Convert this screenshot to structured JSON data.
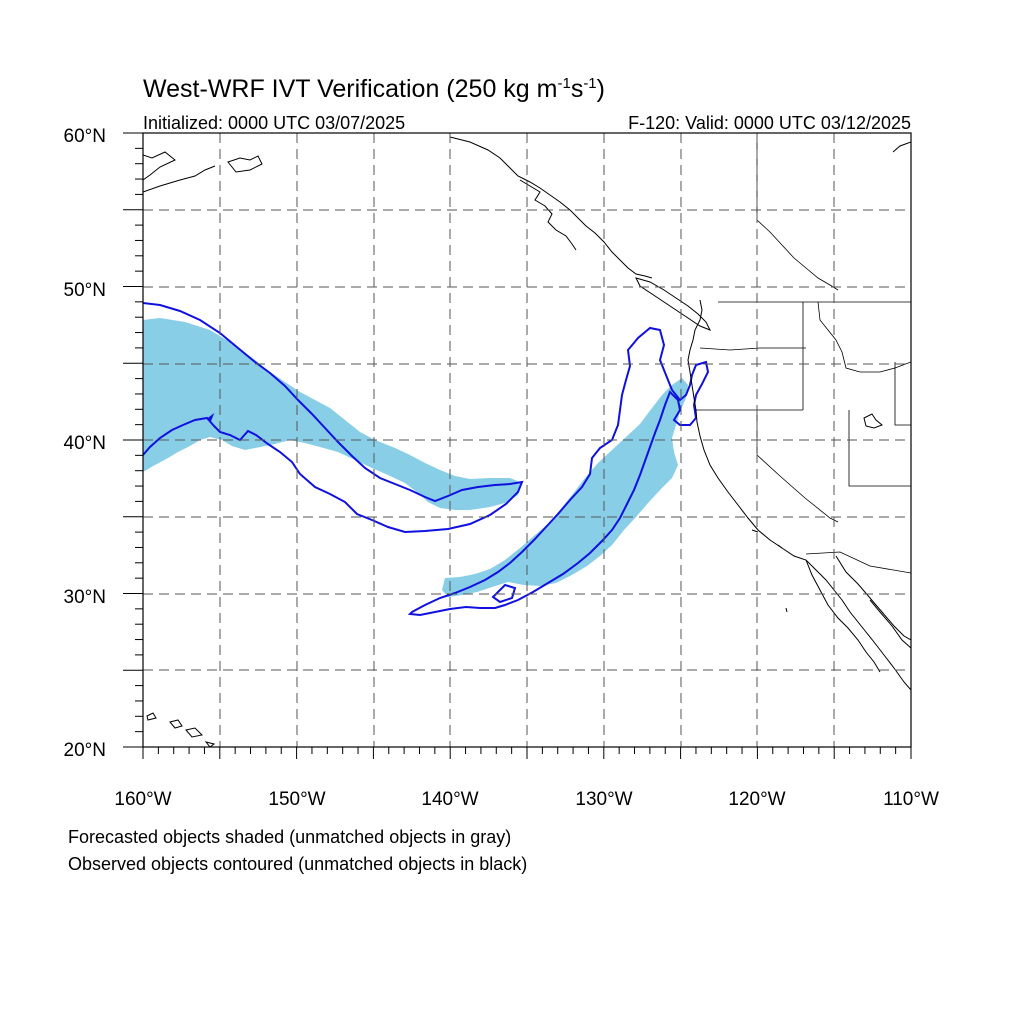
{
  "title": {
    "main": "West-WRF IVT Verification (250 kg m",
    "exp1": "-1",
    "mid": "s",
    "exp2": "-1",
    "close": ")"
  },
  "subtitle": {
    "left": "Initialized: 0000 UTC 03/07/2025",
    "right": "F-120: Valid: 0000 UTC 03/12/2025"
  },
  "map": {
    "lon_range": [
      -160,
      -110
    ],
    "lat_range": [
      20,
      60
    ],
    "grid": true,
    "lat_labels": [
      "60°N",
      "50°N",
      "40°N",
      "30°N",
      "20°N"
    ],
    "lon_labels": [
      "160°W",
      "150°W",
      "140°W",
      "130°W",
      "120°W",
      "110°W"
    ],
    "colors": {
      "forecast_fill": "#87CEE6",
      "observed_contour": "#1010E0",
      "coastline": "#000000",
      "grid": "#555555"
    }
  },
  "legend": {
    "line1": "Forecasted objects shaded (unmatched objects in gray)",
    "line2": "Observed objects contoured (unmatched objects in black)"
  }
}
